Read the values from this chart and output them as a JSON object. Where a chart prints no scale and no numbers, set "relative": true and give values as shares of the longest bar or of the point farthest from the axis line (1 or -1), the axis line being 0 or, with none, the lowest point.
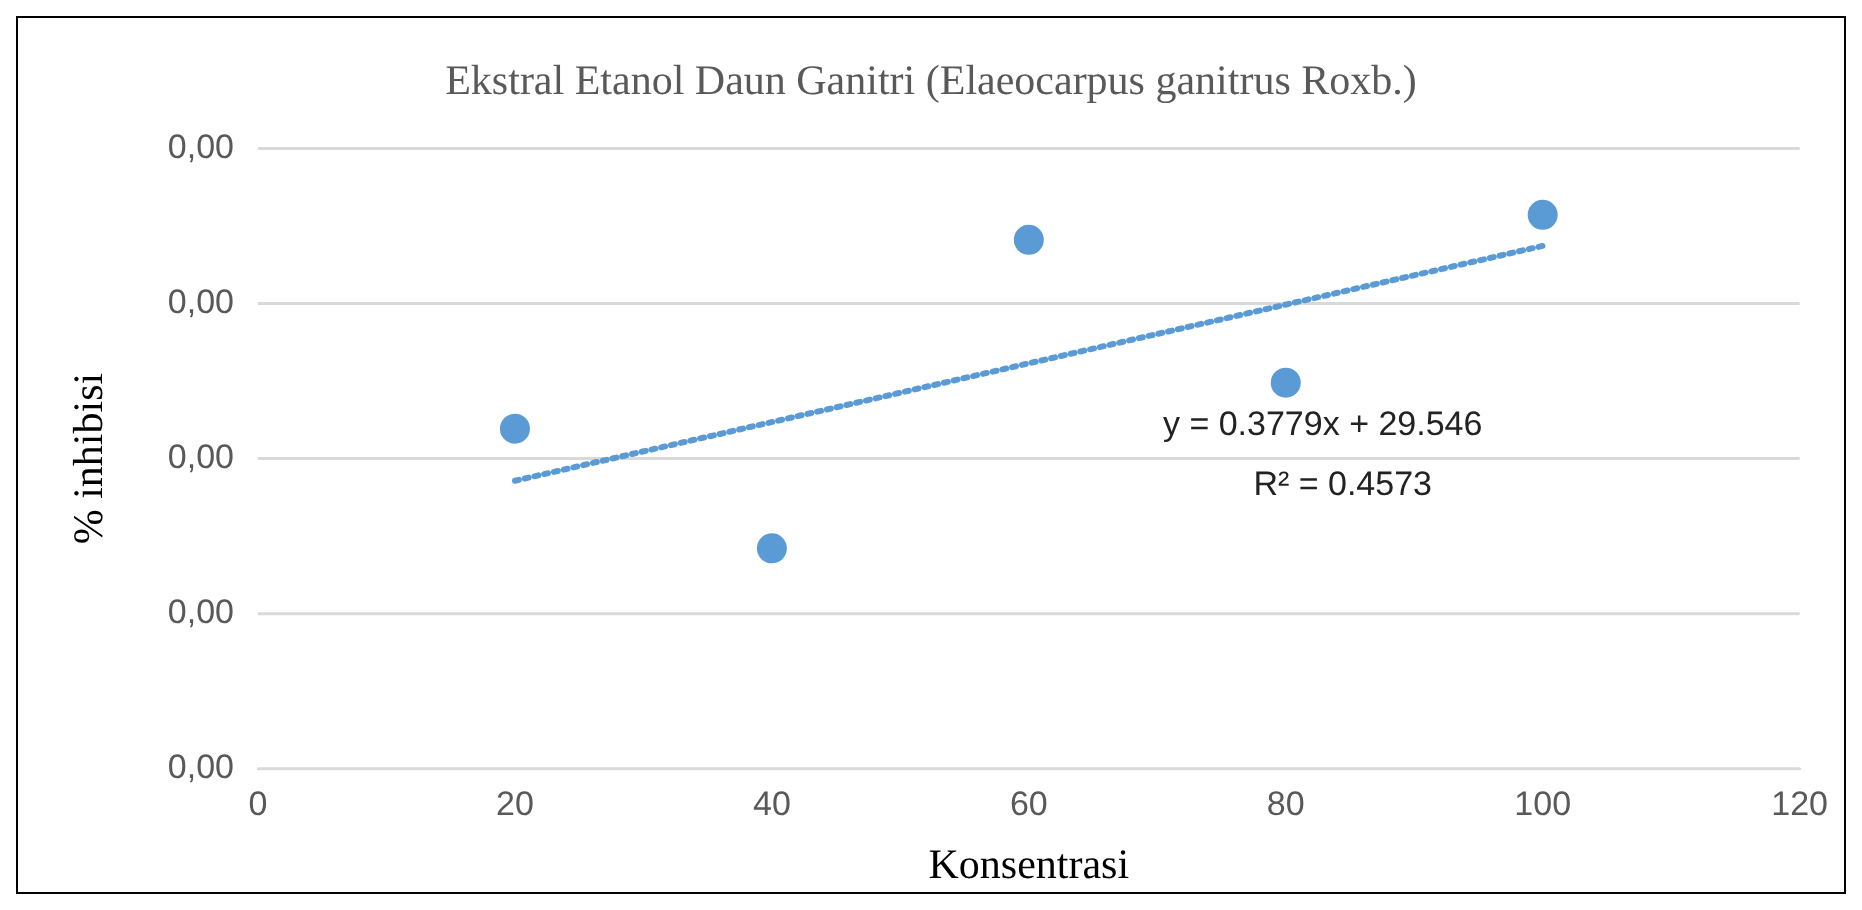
{
  "chart_data": {
    "type": "scatter",
    "relative": true,
    "title": "Ekstral Etanol Daun Ganitri (Elaeocarpus ganitrus Roxb.)",
    "xlabel": "Konsentrasi",
    "ylabel": "% inhibisi",
    "x": [
      20,
      40,
      60,
      80,
      100
    ],
    "series": [
      {
        "type": "scatter",
        "color": "#5b9bd5",
        "values": [
          0.614,
          0.398,
          0.955,
          0.697,
          1
        ],
        "marker": "circle"
      },
      {
        "type": "line",
        "name": "y = 0.3779x + 29.546\nR² = 0.4573",
        "color": "#5b9bd5",
        "x": [
          20,
          100
        ],
        "values": [
          0.52,
          0.944
        ],
        "line_style": "dotted",
        "marker": "none"
      }
    ],
    "xlim": [
      0,
      120
    ],
    "xticks": [
      0,
      20,
      40,
      60,
      80,
      100,
      120
    ],
    "grid": "y",
    "legend": false,
    "annotations": [
      "0,00",
      "0,00",
      "0,00",
      "0,00",
      "0,00"
    ]
  }
}
